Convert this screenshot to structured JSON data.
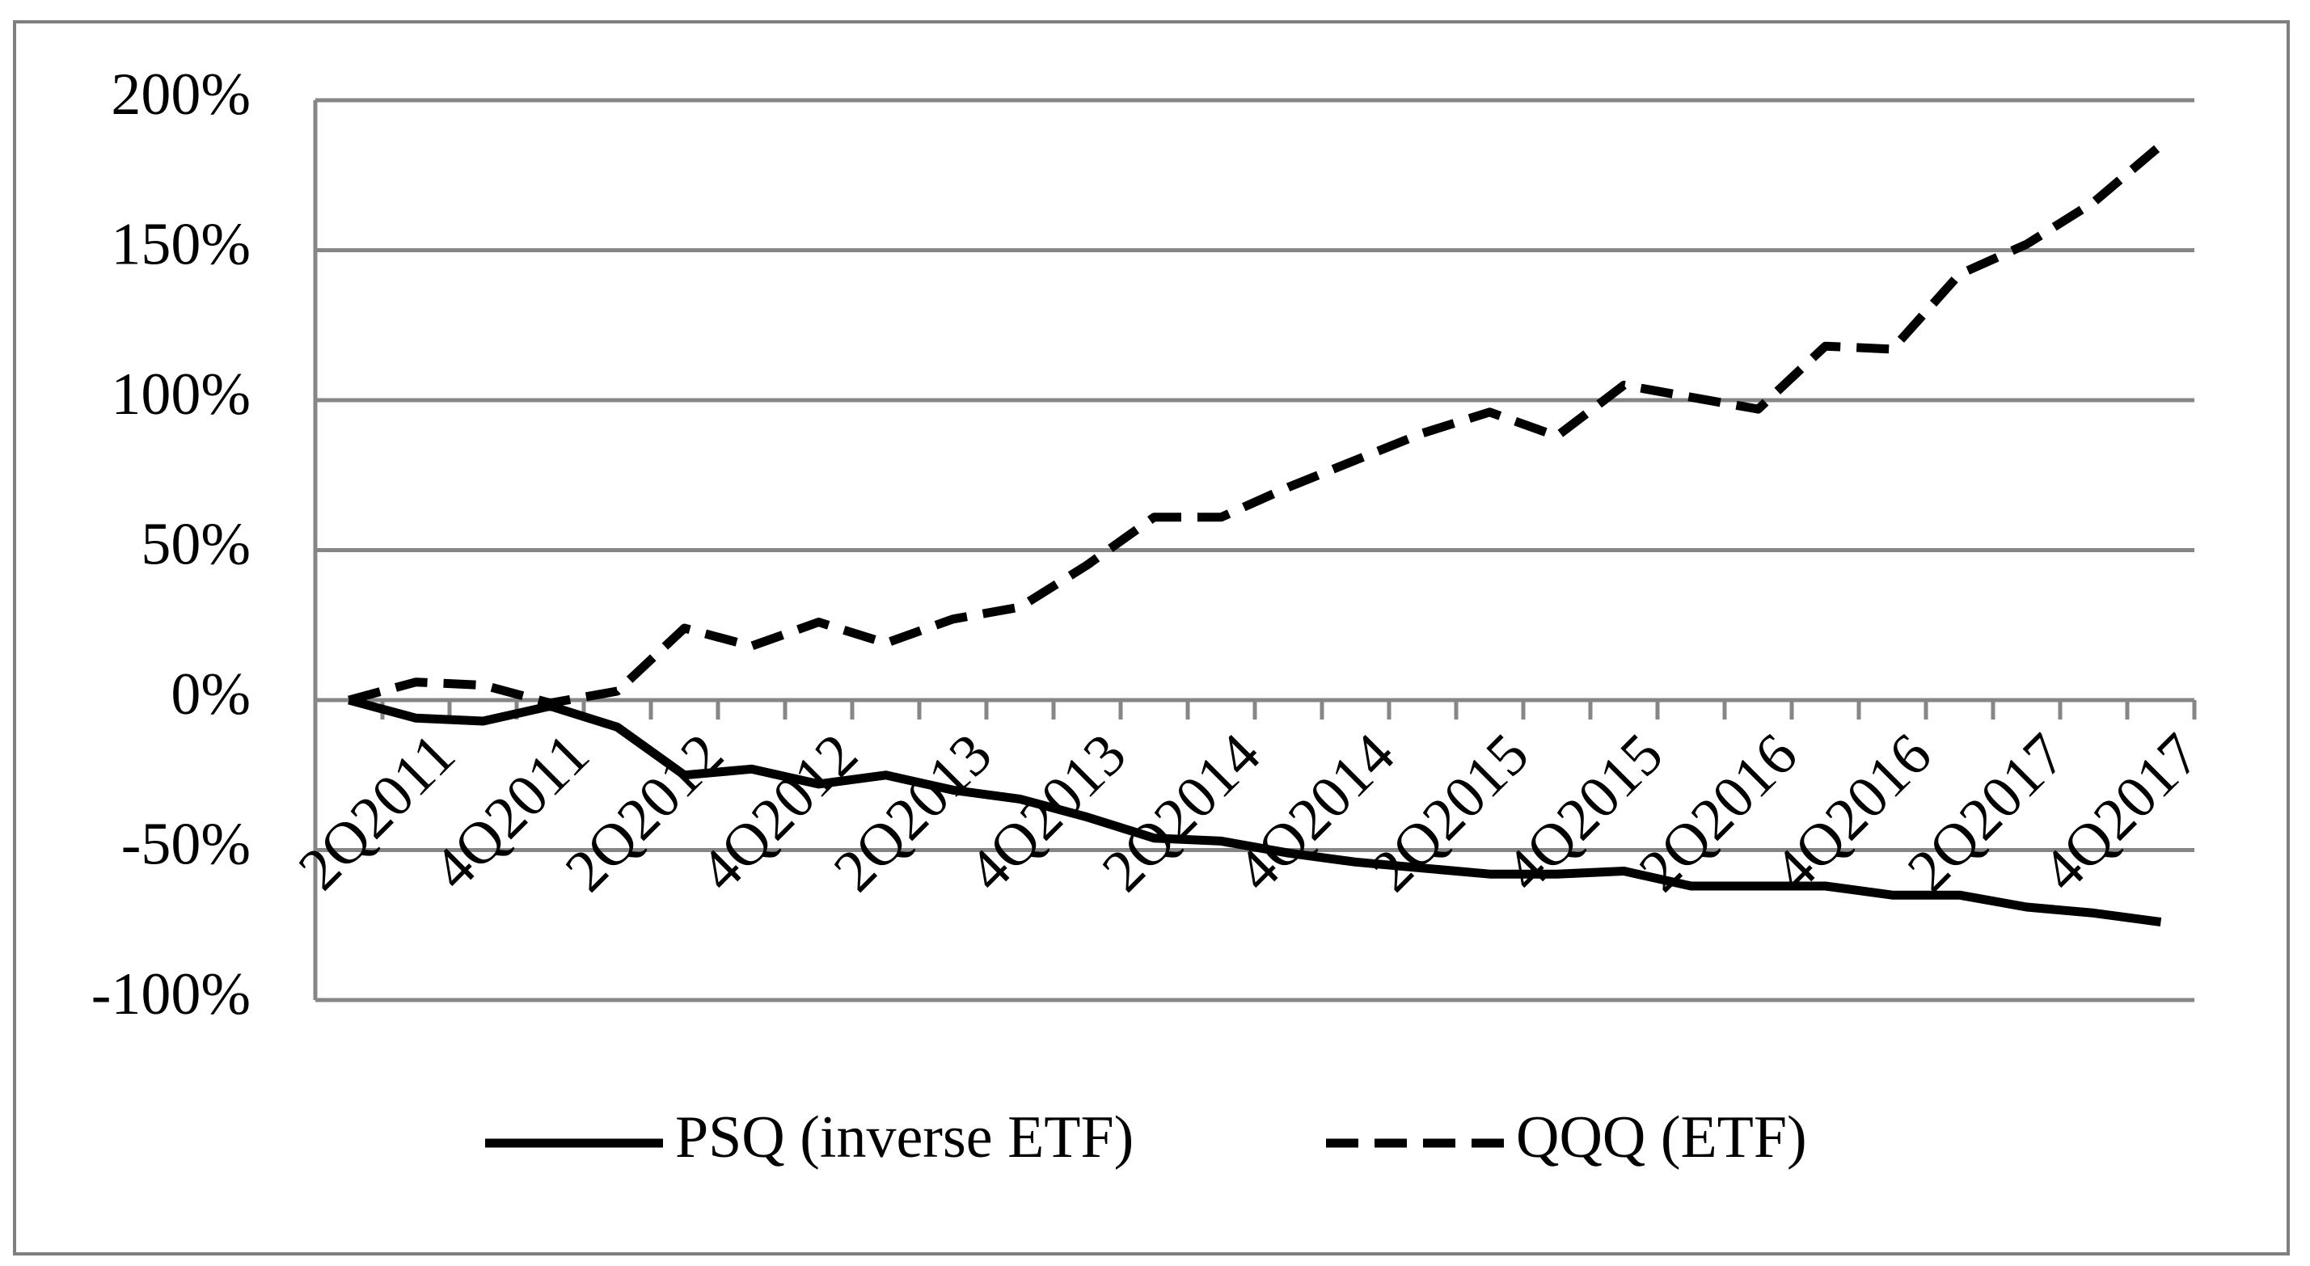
{
  "chart_data": {
    "type": "line",
    "categories": [
      null,
      "2Q2011",
      null,
      "4Q2011",
      null,
      "2Q2012",
      null,
      "4Q2012",
      null,
      "2Q2013",
      null,
      "4Q2013",
      null,
      "2Q2014",
      null,
      "4Q2014",
      null,
      "2Q2015",
      null,
      "4Q2015",
      null,
      "2Q2016",
      null,
      "4Q2016",
      null,
      "2Q2017",
      null,
      "4Q2017"
    ],
    "series": [
      {
        "name": "PSQ (inverse ETF)",
        "color": "#000000",
        "line_style": "solid",
        "values": [
          0,
          -6,
          -7,
          -2,
          -9,
          -25,
          -23,
          -28,
          -25,
          -30,
          -33,
          -39,
          -46,
          -47,
          -51,
          -54,
          -56,
          -58,
          -58,
          -57,
          -62,
          -62,
          -62,
          -65,
          -65,
          -69,
          -71,
          -74
        ]
      },
      {
        "name": "QQQ (ETF)",
        "color": "#000000",
        "line_style": "dashed",
        "values": [
          0,
          6,
          5,
          -1,
          3,
          24,
          18,
          26,
          19,
          27,
          31,
          45,
          61,
          61,
          71,
          80,
          89,
          96,
          88,
          105,
          101,
          97,
          118,
          117,
          142,
          152,
          166,
          185
        ]
      }
    ],
    "ylim": [
      -100,
      200
    ],
    "yticks": [
      {
        "value": -100,
        "label": "-100%"
      },
      {
        "value": -50,
        "label": "-50%"
      },
      {
        "value": 0,
        "label": "0%"
      },
      {
        "value": 50,
        "label": "50%"
      },
      {
        "value": 100,
        "label": "100%"
      },
      {
        "value": 150,
        "label": "150%"
      },
      {
        "value": 200,
        "label": "200%"
      }
    ],
    "grid": true,
    "legend": "bottom"
  }
}
